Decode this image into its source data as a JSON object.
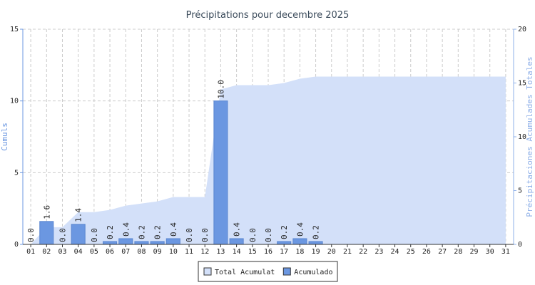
{
  "chart_data": {
    "type": "bar",
    "title": "Précipitations pour decembre 2025",
    "y_label": "Cumuls",
    "y2_label": "Précipitaciones Acumulades Totales",
    "categories": [
      "01",
      "02",
      "03",
      "04",
      "05",
      "06",
      "07",
      "08",
      "09",
      "10",
      "11",
      "12",
      "13",
      "14",
      "15",
      "16",
      "17",
      "18",
      "19",
      "20",
      "21",
      "22",
      "23",
      "24",
      "25",
      "26",
      "27",
      "28",
      "29",
      "30",
      "31"
    ],
    "series": [
      {
        "name": "Total Acumulat",
        "type": "area",
        "axis": "y2",
        "color": "#d3e0f9",
        "values": [
          0,
          1.6,
          1.6,
          3.0,
          3.0,
          3.2,
          3.6,
          3.8,
          4.0,
          4.4,
          4.4,
          4.4,
          14.4,
          14.8,
          14.8,
          14.8,
          15.0,
          15.4,
          15.6,
          15.6,
          15.6,
          15.6,
          15.6,
          15.6,
          15.6,
          15.6,
          15.6,
          15.6,
          15.6,
          15.6,
          15.6
        ]
      },
      {
        "name": "Acumulado",
        "type": "bar",
        "color": "#6b97e1",
        "values": [
          0,
          1.6,
          0,
          1.4,
          0,
          0.2,
          0.4,
          0.2,
          0.2,
          0.4,
          0,
          0,
          10,
          0.4,
          0,
          0,
          0.2,
          0.4,
          0.2,
          null,
          null,
          null,
          null,
          null,
          null,
          null,
          null,
          null,
          null,
          null,
          null
        ],
        "value_labels": [
          "0.0",
          "1.6",
          "0.0",
          "1.4",
          "0.0",
          "0.2",
          "0.4",
          "0.2",
          "0.2",
          "0.4",
          "0.0",
          "0.0",
          "10.0",
          "0.4",
          "0.0",
          "0.0",
          "0.2",
          "0.4",
          "0.2",
          null,
          null,
          null,
          null,
          null,
          null,
          null,
          null,
          null,
          null,
          null,
          null
        ]
      }
    ],
    "ylim": [
      0,
      15
    ],
    "yticks": [
      0,
      5,
      10,
      15
    ],
    "y2lim": [
      0,
      20
    ],
    "y2ticks": [
      0,
      5,
      10,
      15,
      20
    ],
    "grid": true,
    "legend": "bottom"
  }
}
